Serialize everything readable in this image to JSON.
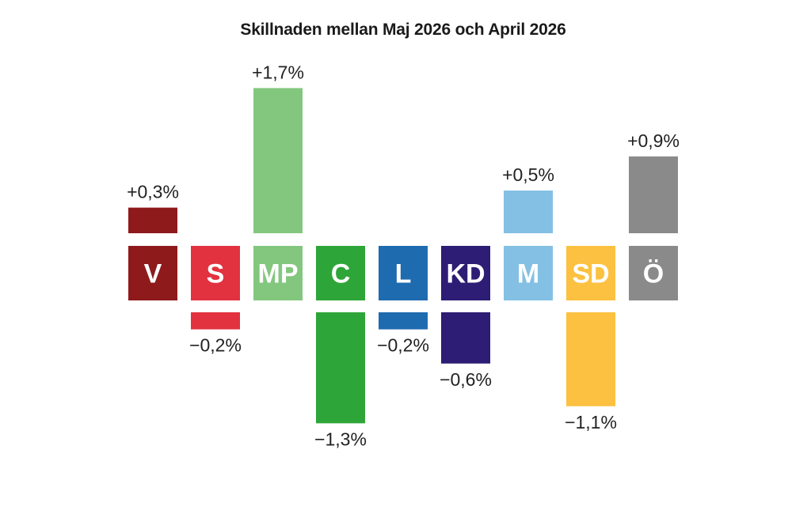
{
  "chart_data": {
    "type": "bar",
    "title": "Skillnaden mellan Maj 2026 och April 2026",
    "categories": [
      "V",
      "S",
      "MP",
      "C",
      "L",
      "KD",
      "M",
      "SD",
      "Ö"
    ],
    "values": [
      0.3,
      -0.2,
      1.7,
      -1.3,
      -0.2,
      -0.6,
      0.5,
      -1.1,
      0.9
    ],
    "value_labels": [
      "+0,3%",
      "−0,2%",
      "+1,7%",
      "−1,3%",
      "−0,2%",
      "−0,6%",
      "+0,5%",
      "−1,1%",
      "+0,9%"
    ],
    "colors": [
      "#8e1a1c",
      "#e2323f",
      "#83c77f",
      "#2ea538",
      "#1f6bb0",
      "#2d1d74",
      "#83c0e3",
      "#fcc140",
      "#8a8a8a"
    ],
    "unit": "%",
    "grid": false,
    "legend": "none"
  }
}
